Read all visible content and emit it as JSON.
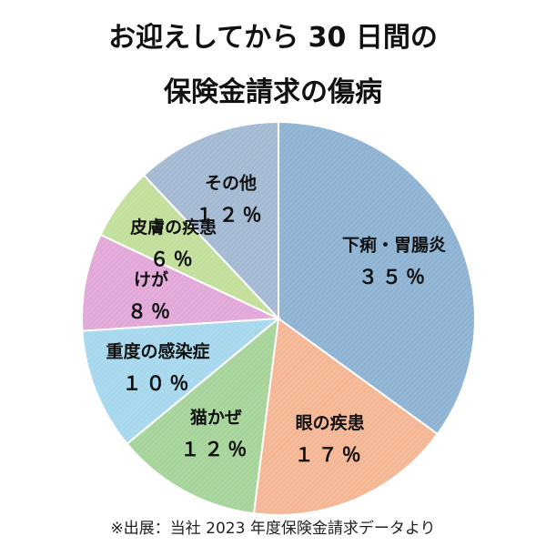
{
  "chart_data": {
    "type": "pie",
    "title_line1": "お迎えしてから 30 日間の",
    "title_line2": "保険金請求の傷病",
    "source": "※出展：当社 2023 年度保険金請求データより",
    "slices": [
      {
        "name": "下痢・胃腸炎",
        "value": 35,
        "label": "３５％",
        "color": "#8fb3d3"
      },
      {
        "name": "眼の疾患",
        "value": 17,
        "label": "１７％",
        "color": "#f4b795"
      },
      {
        "name": "猫かぜ",
        "value": 12,
        "label": "１２％",
        "color": "#a6d49a"
      },
      {
        "name": "重度の感染症",
        "value": 10,
        "label": "１０％",
        "color": "#a7d8ee"
      },
      {
        "name": "けが",
        "value": 8,
        "label": "８％",
        "color": "#e2a8d8"
      },
      {
        "name": "皮膚の疾患",
        "value": 6,
        "label": "６％",
        "color": "#c2df9c"
      },
      {
        "name": "その他",
        "value": 12,
        "label": "１２％",
        "color": "#a4bad3"
      }
    ]
  }
}
